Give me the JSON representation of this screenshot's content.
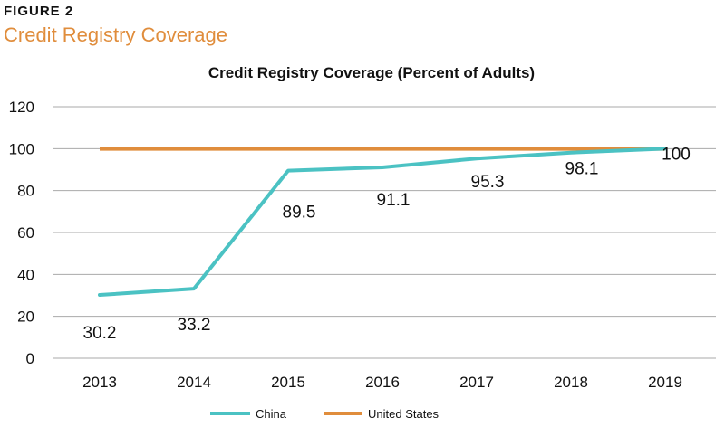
{
  "figure": {
    "label": "FIGURE 2",
    "title": "Credit Registry Coverage"
  },
  "colors": {
    "china": "#4BC2C3",
    "united_states": "#E08D3C",
    "grid": "#AAAAAA",
    "title_accent": "#E08D3C"
  },
  "chart_data": {
    "type": "line",
    "title": "Credit Registry Coverage (Percent of Adults)",
    "xlabel": "",
    "ylabel": "",
    "categories": [
      "2013",
      "2014",
      "2015",
      "2016",
      "2017",
      "2018",
      "2019"
    ],
    "ylim": [
      0,
      120
    ],
    "yticks": [
      0,
      20,
      40,
      60,
      80,
      100,
      120
    ],
    "grid": true,
    "legend_position": "bottom-center",
    "series": [
      {
        "name": "China",
        "values": [
          30.2,
          33.2,
          89.5,
          91.1,
          95.3,
          98.1,
          100
        ],
        "labels": [
          "30.2",
          "33.2",
          "89.5",
          "91.1",
          "95.3",
          "98.1",
          "100"
        ]
      },
      {
        "name": "United States",
        "values": [
          100,
          100,
          100,
          100,
          100,
          100,
          100
        ]
      }
    ]
  }
}
